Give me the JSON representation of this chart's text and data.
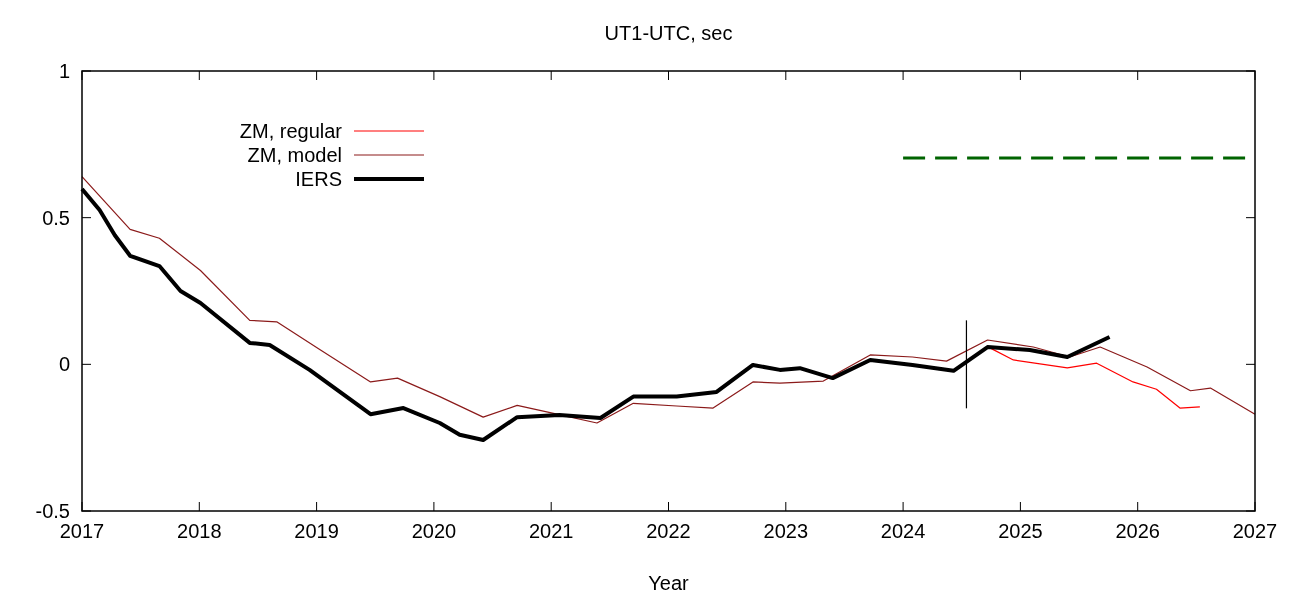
{
  "chart_data": {
    "type": "line",
    "title": "UT1-UTC, sec",
    "xlabel": "Year",
    "xlim": [
      2017,
      2027
    ],
    "xticks": [
      2017,
      2018,
      2019,
      2020,
      2021,
      2022,
      2023,
      2024,
      2025,
      2026,
      2027
    ],
    "ylim": [
      -0.5,
      1
    ],
    "yticks": [
      -0.5,
      0,
      0.5,
      1
    ],
    "grid": false,
    "legend": "top left",
    "marker": "none",
    "series": [
      {
        "name": "ZM, regular",
        "color": "#ff0000",
        "x": [
          2024.74,
          2024.94,
          2025.4,
          2025.65,
          2025.96,
          2026.16,
          2026.36,
          2026.53
        ],
        "values": [
          0.056,
          0.015,
          -0.012,
          0.004,
          -0.06,
          -0.085,
          -0.149,
          -0.145
        ]
      },
      {
        "name": "ZM, model",
        "color": "#8b1a1a",
        "x": [
          2017,
          2017.41,
          2017.66,
          2018.01,
          2018.43,
          2018.66,
          2019.03,
          2019.46,
          2019.69,
          2020.05,
          2020.42,
          2020.71,
          2021.02,
          2021.39,
          2021.7,
          2022.07,
          2022.38,
          2022.72,
          2022.95,
          2023.32,
          2023.72,
          2024.08,
          2024.37,
          2024.72,
          2025.11,
          2025.42,
          2025.68,
          2026.08,
          2026.45,
          2026.62,
          2027
        ],
        "values": [
          0.64,
          0.46,
          0.43,
          0.32,
          0.15,
          0.145,
          0.05,
          -0.06,
          -0.047,
          -0.11,
          -0.18,
          -0.14,
          -0.167,
          -0.2,
          -0.133,
          -0.142,
          -0.149,
          -0.06,
          -0.064,
          -0.057,
          0.032,
          0.025,
          0.011,
          0.083,
          0.059,
          0.025,
          0.059,
          -0.009,
          -0.09,
          -0.081,
          -0.17
        ]
      },
      {
        "name": "IERS",
        "color": "#000000",
        "x": [
          2017,
          2017.15,
          2017.28,
          2017.41,
          2017.66,
          2017.84,
          2018.01,
          2018.43,
          2018.6,
          2018.94,
          2019.46,
          2019.74,
          2020.05,
          2020.22,
          2020.42,
          2020.71,
          2021.07,
          2021.42,
          2021.7,
          2022.07,
          2022.41,
          2022.72,
          2022.95,
          2023.12,
          2023.4,
          2023.72,
          2024.08,
          2024.43,
          2024.72,
          2025.08,
          2025.4,
          2025.76
        ],
        "values": [
          0.598,
          0.526,
          0.44,
          0.37,
          0.335,
          0.25,
          0.209,
          0.073,
          0.066,
          -0.019,
          -0.17,
          -0.149,
          -0.2,
          -0.24,
          -0.258,
          -0.18,
          -0.173,
          -0.183,
          -0.11,
          -0.11,
          -0.094,
          -0.002,
          -0.019,
          -0.013,
          -0.047,
          0.015,
          -0.002,
          -0.022,
          0.059,
          0.049,
          0.025,
          0.093
        ]
      },
      {
        "color": "#006400",
        "line_style": "dashed",
        "x": [
          2024,
          2027
        ],
        "values": [
          0.703,
          0.703
        ]
      },
      {
        "color": "#000000",
        "x": [
          2024.54,
          2024.54
        ],
        "values": [
          0.15,
          -0.15
        ]
      }
    ]
  }
}
